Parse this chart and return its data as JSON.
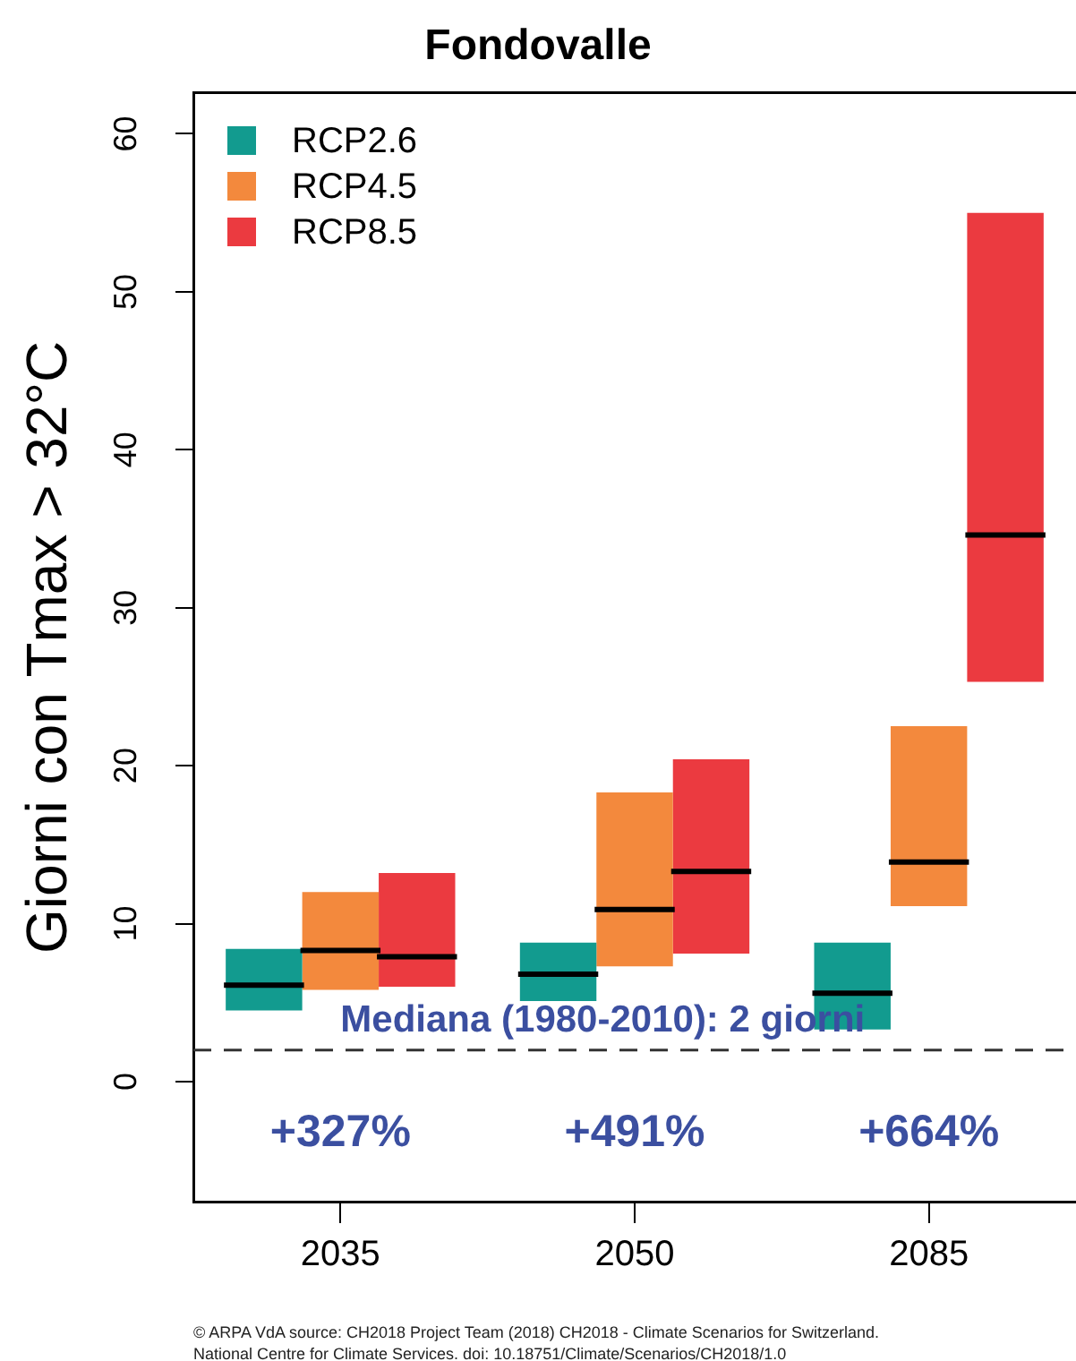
{
  "chart_data": {
    "type": "box",
    "title": "Fondovalle",
    "ylabel": "Giorni con Tmax > 32°C",
    "categories": [
      "2035",
      "2050",
      "2085"
    ],
    "series": [
      {
        "name": "RCP2.6",
        "color": "#129b8f",
        "boxes": [
          {
            "low": 4.5,
            "q1": 4.5,
            "median": 6.1,
            "q3": 8.4,
            "high": 8.4
          },
          {
            "low": 5.1,
            "q1": 5.1,
            "median": 6.8,
            "q3": 8.8,
            "high": 8.8
          },
          {
            "low": 3.3,
            "q1": 3.3,
            "median": 5.6,
            "q3": 8.8,
            "high": 8.8
          }
        ]
      },
      {
        "name": "RCP4.5",
        "color": "#f3893d",
        "boxes": [
          {
            "low": 5.8,
            "q1": 5.8,
            "median": 8.3,
            "q3": 12.0,
            "high": 12.0
          },
          {
            "low": 7.3,
            "q1": 7.3,
            "median": 10.9,
            "q3": 18.3,
            "high": 18.3
          },
          {
            "low": 11.1,
            "q1": 11.1,
            "median": 13.9,
            "q3": 22.5,
            "high": 22.5
          }
        ]
      },
      {
        "name": "RCP8.5",
        "color": "#eb3a40",
        "boxes": [
          {
            "low": 6.0,
            "q1": 6.0,
            "median": 7.9,
            "q3": 13.2,
            "high": 13.2
          },
          {
            "low": 8.1,
            "q1": 8.1,
            "median": 13.3,
            "q3": 20.4,
            "high": 20.4
          },
          {
            "low": 25.3,
            "q1": 25.3,
            "median": 34.6,
            "q3": 55.0,
            "high": 55.0
          }
        ]
      }
    ],
    "ylim": [
      -7.6,
      62.6
    ],
    "yticks": [
      0,
      10,
      20,
      30,
      40,
      50,
      60
    ],
    "legend": "top left",
    "ref_lines": [
      {
        "axis": "y",
        "value": 2,
        "label": "Mediana (1980-2010): 2 giorni",
        "color": "#333333",
        "line_style": "dashed"
      }
    ],
    "annotations": [
      "+327%",
      "+491%",
      "+664%",
      "© ARPA VdA source: CH2018 Project Team (2018) CH2018 - Climate Scenarios for Switzerland.",
      "National Centre for Climate Services. doi: 10.18751/Climate/Scenarios/CH2018/1.0"
    ]
  }
}
